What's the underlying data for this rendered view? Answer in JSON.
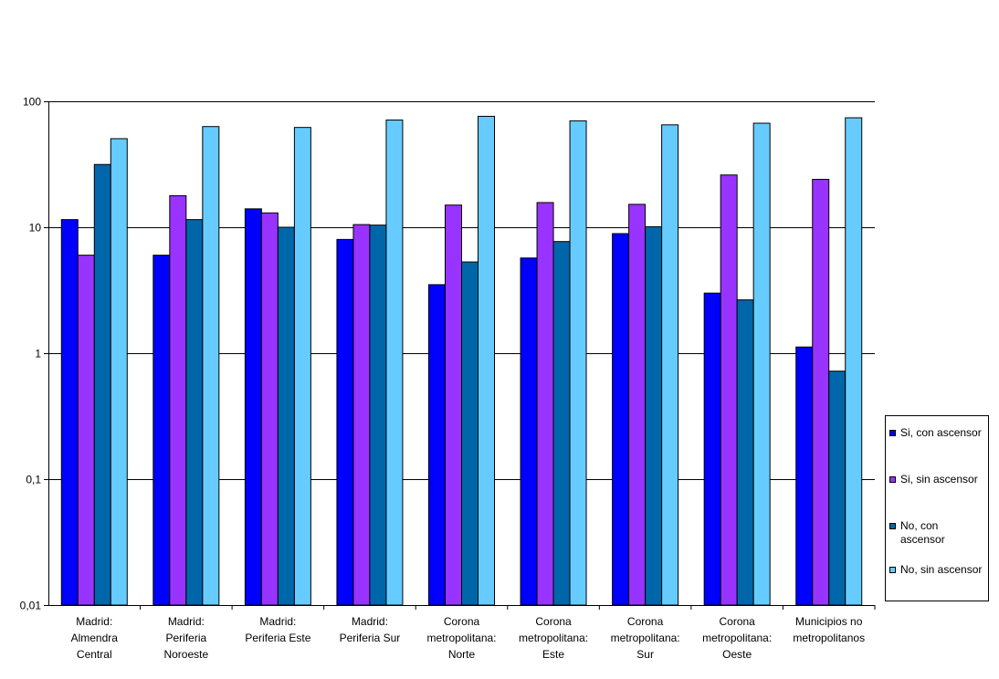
{
  "chart_data": {
    "type": "bar",
    "yscale": "log",
    "ylim": [
      0.01,
      100
    ],
    "yticks": [
      "0,01",
      "0,1",
      "1",
      "10",
      "100"
    ],
    "grid": true,
    "legend_position": "right",
    "categories": [
      [
        "Madrid:",
        "Almendra",
        "Central"
      ],
      [
        "Madrid:",
        "Periferia",
        "Noroeste"
      ],
      [
        "Madrid:",
        "Periferia Este"
      ],
      [
        "Madrid:",
        "Periferia Sur"
      ],
      [
        "Corona",
        "metropolitana:",
        "Norte"
      ],
      [
        "Corona",
        "metropolitana:",
        "Este"
      ],
      [
        "Corona",
        "metropolitana:",
        "Sur"
      ],
      [
        "Corona",
        "metropolitana:",
        "Oeste"
      ],
      [
        "Municipios no",
        "metropolitanos"
      ]
    ],
    "series": [
      {
        "name": "Si, con ascensor",
        "color": "#0000ff",
        "values": [
          11.5,
          6.0,
          14.0,
          8.0,
          3.5,
          5.7,
          8.9,
          3.0,
          1.12
        ]
      },
      {
        "name": "Si, sin ascensor",
        "color": "#9933ff",
        "values": [
          6.0,
          17.8,
          13.0,
          10.5,
          15.0,
          15.7,
          15.2,
          26.0,
          24.0
        ]
      },
      {
        "name": [
          "No, con",
          "ascensor"
        ],
        "color": "#0066aa",
        "values": [
          31.5,
          11.5,
          10.0,
          10.4,
          5.3,
          7.7,
          10.1,
          2.65,
          0.72
        ]
      },
      {
        "name": "No, sin ascensor",
        "color": "#66ccff",
        "values": [
          50.5,
          63.0,
          62.0,
          71.0,
          76.0,
          70.0,
          65.0,
          67.0,
          74.0
        ]
      }
    ]
  }
}
